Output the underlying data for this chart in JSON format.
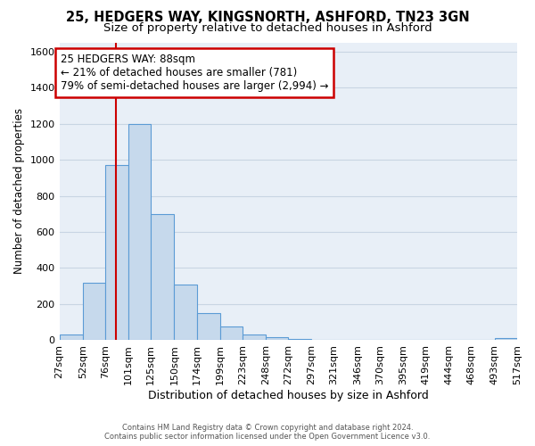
{
  "title": "25, HEDGERS WAY, KINGSNORTH, ASHFORD, TN23 3GN",
  "subtitle": "Size of property relative to detached houses in Ashford",
  "xlabel": "Distribution of detached houses by size in Ashford",
  "ylabel": "Number of detached properties",
  "bar_edges": [
    27,
    52,
    76,
    101,
    125,
    150,
    174,
    199,
    223,
    248,
    272,
    297,
    321,
    346,
    370,
    395,
    419,
    444,
    468,
    493,
    517
  ],
  "bar_heights": [
    30,
    320,
    970,
    1200,
    700,
    310,
    150,
    75,
    30,
    18,
    5,
    3,
    2,
    2,
    1,
    1,
    0,
    0,
    0,
    10
  ],
  "tick_labels": [
    "27sqm",
    "52sqm",
    "76sqm",
    "101sqm",
    "125sqm",
    "150sqm",
    "174sqm",
    "199sqm",
    "223sqm",
    "248sqm",
    "272sqm",
    "297sqm",
    "321sqm",
    "346sqm",
    "370sqm",
    "395sqm",
    "419sqm",
    "444sqm",
    "468sqm",
    "493sqm",
    "517sqm"
  ],
  "bar_color": "#c6d9ec",
  "bar_edge_color": "#5b9bd5",
  "property_line_x": 88,
  "property_line_color": "#cc0000",
  "annotation_text": "25 HEDGERS WAY: 88sqm\n← 21% of detached houses are smaller (781)\n79% of semi-detached houses are larger (2,994) →",
  "annotation_box_color": "#ffffff",
  "annotation_box_edge": "#cc0000",
  "ylim": [
    0,
    1650
  ],
  "yticks": [
    0,
    200,
    400,
    600,
    800,
    1000,
    1200,
    1400,
    1600
  ],
  "footer1": "Contains HM Land Registry data © Crown copyright and database right 2024.",
  "footer2": "Contains public sector information licensed under the Open Government Licence v3.0.",
  "plot_bg_color": "#e8eff7",
  "background_color": "#ffffff",
  "grid_color": "#c8d5e3",
  "title_fontsize": 10.5,
  "subtitle_fontsize": 9.5,
  "ann_fontsize": 8.5
}
